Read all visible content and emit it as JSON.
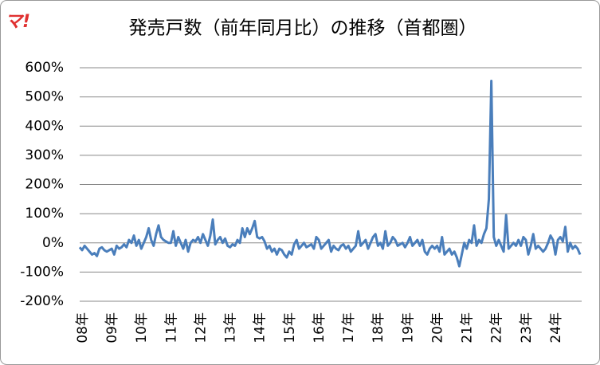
{
  "chart_data": {
    "type": "line",
    "title": "発売戸数（前年同月比）の推移（首都圏）",
    "brand": "マ!",
    "categories": [
      "08年",
      null,
      null,
      null,
      null,
      null,
      null,
      null,
      null,
      null,
      null,
      null,
      "09年",
      null,
      null,
      null,
      null,
      null,
      null,
      null,
      null,
      null,
      null,
      null,
      "10年",
      null,
      null,
      null,
      null,
      null,
      null,
      null,
      null,
      null,
      null,
      null,
      "11年",
      null,
      null,
      null,
      null,
      null,
      null,
      null,
      null,
      null,
      null,
      null,
      "12年",
      null,
      null,
      null,
      null,
      null,
      null,
      null,
      null,
      null,
      null,
      null,
      "13年",
      null,
      null,
      null,
      null,
      null,
      null,
      null,
      null,
      null,
      null,
      null,
      "14年",
      null,
      null,
      null,
      null,
      null,
      null,
      null,
      null,
      null,
      null,
      null,
      "15年",
      null,
      null,
      null,
      null,
      null,
      null,
      null,
      null,
      null,
      null,
      null,
      "16年",
      null,
      null,
      null,
      null,
      null,
      null,
      null,
      null,
      null,
      null,
      null,
      "17年",
      null,
      null,
      null,
      null,
      null,
      null,
      null,
      null,
      null,
      null,
      null,
      "18年",
      null,
      null,
      null,
      null,
      null,
      null,
      null,
      null,
      null,
      null,
      null,
      "19年",
      null,
      null,
      null,
      null,
      null,
      null,
      null,
      null,
      null,
      null,
      null,
      "20年",
      null,
      null,
      null,
      null,
      null,
      null,
      null,
      null,
      null,
      null,
      null,
      "21年",
      null,
      null,
      null,
      null,
      null,
      null,
      null,
      null,
      null,
      null,
      null,
      "22年",
      null,
      null,
      null,
      null,
      null,
      null,
      null,
      null,
      null,
      null,
      null,
      "23年",
      null,
      null,
      null,
      null,
      null,
      null,
      null,
      null,
      null,
      null,
      null,
      "24年",
      null,
      null,
      null,
      null,
      null,
      null,
      null,
      null,
      null,
      null,
      null
    ],
    "values": [
      -15,
      -25,
      -10,
      -20,
      -30,
      -40,
      -35,
      -45,
      -20,
      -15,
      -25,
      -30,
      -25,
      -20,
      -40,
      -10,
      -20,
      -15,
      -5,
      -15,
      10,
      0,
      25,
      -10,
      10,
      -20,
      0,
      20,
      50,
      10,
      -10,
      30,
      60,
      20,
      10,
      5,
      0,
      0,
      40,
      -10,
      20,
      0,
      -20,
      10,
      -30,
      0,
      10,
      5,
      20,
      0,
      30,
      10,
      -10,
      25,
      80,
      -5,
      10,
      20,
      0,
      15,
      -10,
      -15,
      -5,
      -10,
      10,
      0,
      50,
      20,
      50,
      30,
      50,
      75,
      20,
      15,
      20,
      5,
      -20,
      -10,
      -30,
      -20,
      -40,
      -20,
      -25,
      -40,
      -50,
      -30,
      -40,
      -5,
      10,
      -20,
      -10,
      0,
      -15,
      -10,
      -5,
      -20,
      20,
      10,
      -20,
      -10,
      0,
      10,
      -30,
      -10,
      -20,
      -25,
      -10,
      -5,
      -20,
      -10,
      -30,
      -20,
      -10,
      40,
      -10,
      0,
      10,
      -20,
      0,
      20,
      30,
      -10,
      0,
      -20,
      40,
      -10,
      0,
      20,
      10,
      -10,
      -5,
      0,
      -15,
      0,
      20,
      -10,
      0,
      10,
      -10,
      10,
      -30,
      -40,
      -20,
      -10,
      -20,
      -10,
      -30,
      20,
      -40,
      -30,
      -20,
      -40,
      -30,
      -50,
      -80,
      -40,
      0,
      -20,
      10,
      0,
      60,
      -10,
      10,
      0,
      30,
      50,
      150,
      555,
      20,
      -10,
      10,
      -10,
      -30,
      95,
      -20,
      -10,
      0,
      -10,
      10,
      -10,
      20,
      10,
      -40,
      -10,
      30,
      -20,
      -10,
      -20,
      -30,
      -20,
      0,
      25,
      10,
      -40,
      10,
      20,
      5,
      55,
      -30,
      0,
      -20,
      -10,
      -20,
      -40
    ],
    "color": "#4a7ebb",
    "ylim": [
      -200,
      600
    ],
    "yticks": [
      {
        "value": -200,
        "label": "-200%"
      },
      {
        "value": -100,
        "label": "-100%"
      },
      {
        "value": 0,
        "label": "0%"
      },
      {
        "value": 100,
        "label": "100%"
      },
      {
        "value": 200,
        "label": "200%"
      },
      {
        "value": 300,
        "label": "300%"
      },
      {
        "value": 400,
        "label": "400%"
      },
      {
        "value": 500,
        "label": "500%"
      },
      {
        "value": 600,
        "label": "600%"
      }
    ],
    "grid": true
  }
}
